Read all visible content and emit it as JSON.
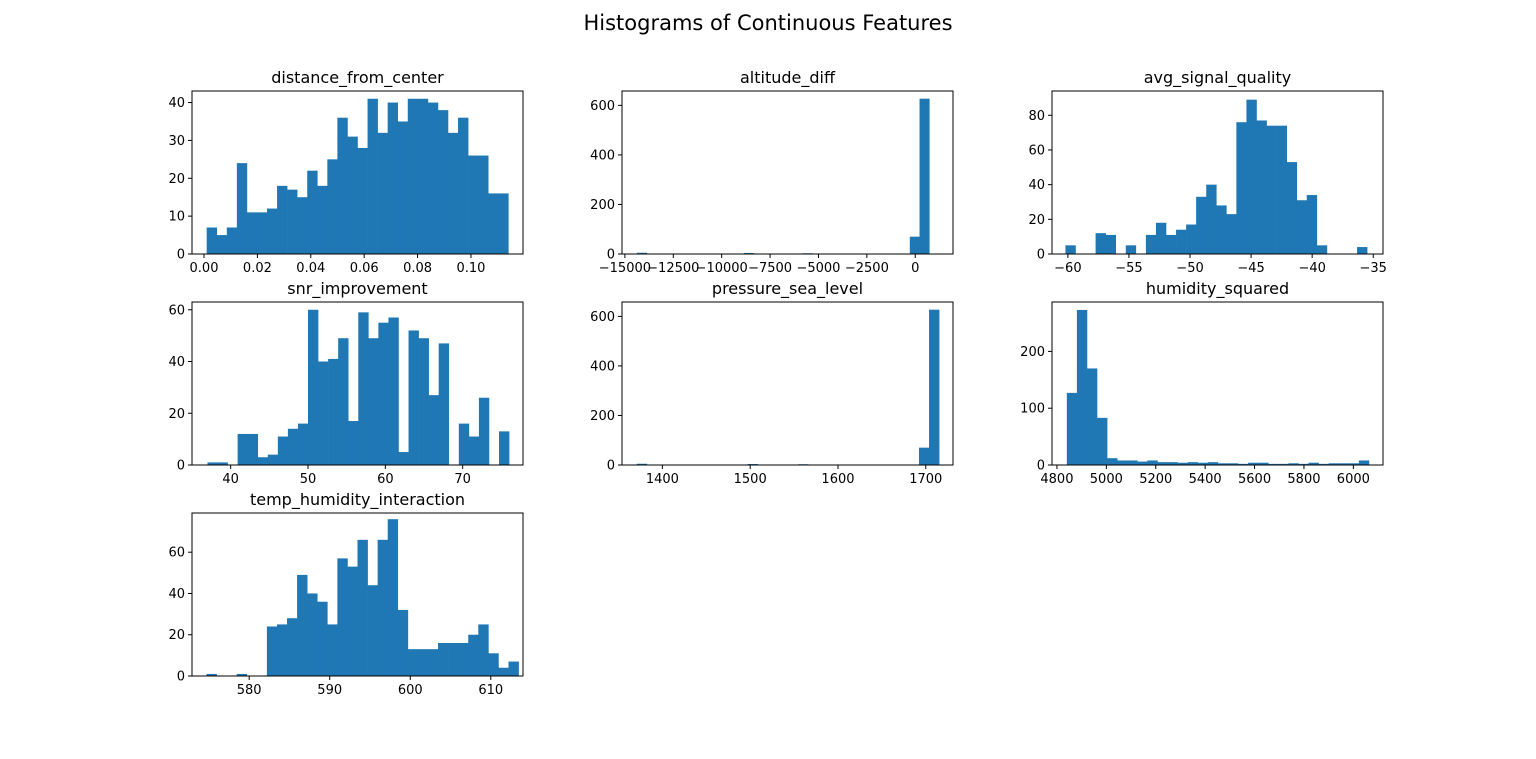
{
  "figure": {
    "title": "Histograms of Continuous Features"
  },
  "colors": {
    "bar": "#1f77b4",
    "axes": "#000000",
    "background": "#ffffff"
  },
  "chart_data": [
    {
      "type": "bar",
      "title": "distance_from_center",
      "xlabel": "",
      "ylabel": "",
      "xlim": [
        -0.0045,
        0.1195
      ],
      "ylim": [
        0,
        43.05
      ],
      "bin_start": 0.001,
      "bin_width": 0.0037667,
      "values": [
        7,
        5,
        7,
        24,
        11,
        11,
        12,
        18,
        17,
        15,
        22,
        18,
        25,
        36,
        31,
        28,
        41,
        32,
        40,
        35,
        41,
        41,
        40,
        38,
        32,
        36,
        26,
        26,
        16,
        16
      ],
      "x_ticks": [
        0.0,
        0.02,
        0.04,
        0.06,
        0.08,
        0.1
      ],
      "x_tick_labels": [
        "0.00",
        "0.02",
        "0.04",
        "0.06",
        "0.08",
        "0.10"
      ],
      "y_ticks": [
        0,
        10,
        20,
        30,
        40
      ],
      "y_tick_labels": [
        "0",
        "10",
        "20",
        "30",
        "40"
      ],
      "grid": false
    },
    {
      "type": "bar",
      "title": "altitude_diff",
      "xlabel": "",
      "ylabel": "",
      "xlim": [
        -15150,
        1950
      ],
      "ylim": [
        0,
        658
      ],
      "bin_start": -14375,
      "bin_width": 503.33,
      "values": [
        5,
        0,
        0,
        0,
        0,
        0,
        0,
        0,
        0,
        0,
        0,
        4,
        0,
        0,
        0,
        0,
        0,
        3,
        0,
        0,
        0,
        0,
        0,
        0,
        0,
        0,
        0,
        2,
        70,
        627
      ],
      "x_ticks": [
        -15000,
        -12500,
        -10000,
        -7500,
        -5000,
        -2500,
        0
      ],
      "x_tick_labels": [
        "−15000",
        "−12500",
        "−10000",
        "−7500",
        "−5000",
        "−2500",
        "0"
      ],
      "y_ticks": [
        0,
        200,
        400,
        600
      ],
      "y_tick_labels": [
        "0",
        "200",
        "400",
        "600"
      ],
      "grid": false
    },
    {
      "type": "bar",
      "title": "avg_signal_quality",
      "xlabel": "",
      "ylabel": "",
      "xlim": [
        -61.3,
        -34.2
      ],
      "ylim": [
        0,
        94
      ],
      "bin_start": -60.2,
      "bin_width": 0.8233,
      "values": [
        5,
        0,
        0,
        12,
        11,
        0,
        5,
        0,
        11,
        18,
        11,
        14,
        17,
        33,
        40,
        28,
        23,
        76,
        89,
        77,
        74,
        74,
        53,
        31,
        34,
        5,
        0,
        0,
        0,
        4
      ],
      "x_ticks": [
        -60,
        -55,
        -50,
        -45,
        -40,
        -35
      ],
      "x_tick_labels": [
        "−60",
        "−55",
        "−50",
        "−45",
        "−40",
        "−35"
      ],
      "y_ticks": [
        0,
        20,
        40,
        60,
        80
      ],
      "y_tick_labels": [
        "0",
        "20",
        "40",
        "60",
        "80"
      ],
      "grid": false
    },
    {
      "type": "bar",
      "title": "snr_improvement",
      "xlabel": "",
      "ylabel": "",
      "xlim": [
        35.0,
        77.8
      ],
      "ylim": [
        0,
        63
      ],
      "bin_start": 37.0,
      "bin_width": 1.3,
      "values": [
        1,
        1,
        0,
        12,
        12,
        3,
        4,
        11,
        14,
        16,
        60,
        40,
        41,
        49,
        17,
        59,
        49,
        55,
        57,
        5,
        52,
        49,
        27,
        47,
        0,
        16,
        11,
        26,
        0,
        13
      ],
      "x_ticks": [
        40,
        50,
        60,
        70
      ],
      "x_tick_labels": [
        "40",
        "50",
        "60",
        "70"
      ],
      "y_ticks": [
        0,
        20,
        40,
        60
      ],
      "y_tick_labels": [
        "0",
        "20",
        "40",
        "60"
      ],
      "grid": false
    },
    {
      "type": "bar",
      "title": "pressure_sea_level",
      "xlabel": "",
      "ylabel": "",
      "xlim": [
        1354,
        1731
      ],
      "ylim": [
        0,
        658
      ],
      "bin_start": 1370.8,
      "bin_width": 11.48,
      "values": [
        5,
        0,
        0,
        0,
        0,
        0,
        0,
        0,
        0,
        0,
        0,
        4,
        0,
        0,
        0,
        0,
        3,
        0,
        0,
        0,
        0,
        0,
        0,
        0,
        0,
        0,
        0,
        2,
        70,
        627
      ],
      "x_ticks": [
        1400,
        1500,
        1600,
        1700
      ],
      "x_tick_labels": [
        "1400",
        "1500",
        "1600",
        "1700"
      ],
      "y_ticks": [
        0,
        200,
        400,
        600
      ],
      "y_tick_labels": [
        "0",
        "200",
        "400",
        "600"
      ],
      "grid": false
    },
    {
      "type": "bar",
      "title": "humidity_squared",
      "xlabel": "",
      "ylabel": "",
      "xlim": [
        4780,
        6120
      ],
      "ylim": [
        0,
        287
      ],
      "bin_start": 4840,
      "bin_width": 40.77,
      "values": [
        127,
        273,
        170,
        83,
        12,
        8,
        8,
        6,
        8,
        5,
        5,
        4,
        5,
        4,
        5,
        3,
        3,
        2,
        4,
        4,
        2,
        2,
        3,
        2,
        4,
        2,
        3,
        3,
        3,
        8
      ],
      "x_ticks": [
        4800,
        5000,
        5200,
        5400,
        5600,
        5800,
        6000
      ],
      "x_tick_labels": [
        "4800",
        "5000",
        "5200",
        "5400",
        "5600",
        "5800",
        "6000"
      ],
      "y_ticks": [
        0,
        100,
        200
      ],
      "y_tick_labels": [
        "0",
        "100",
        "200"
      ],
      "grid": false
    },
    {
      "type": "bar",
      "title": "temp_humidity_interaction",
      "xlabel": "",
      "ylabel": "",
      "xlim": [
        572.9,
        614.0
      ],
      "ylim": [
        0,
        79
      ],
      "bin_start": 574.7,
      "bin_width": 1.25,
      "values": [
        1,
        0,
        0,
        1,
        0,
        0,
        24,
        25,
        28,
        49,
        40,
        36,
        25,
        57,
        53,
        66,
        44,
        66,
        76,
        32,
        13,
        13,
        13,
        16,
        16,
        16,
        20,
        25,
        11,
        4,
        7
      ],
      "x_ticks": [
        580,
        590,
        600,
        610
      ],
      "x_tick_labels": [
        "580",
        "590",
        "600",
        "610"
      ],
      "y_ticks": [
        0,
        20,
        40,
        60
      ],
      "y_tick_labels": [
        "0",
        "20",
        "40",
        "60"
      ],
      "grid": false
    }
  ]
}
